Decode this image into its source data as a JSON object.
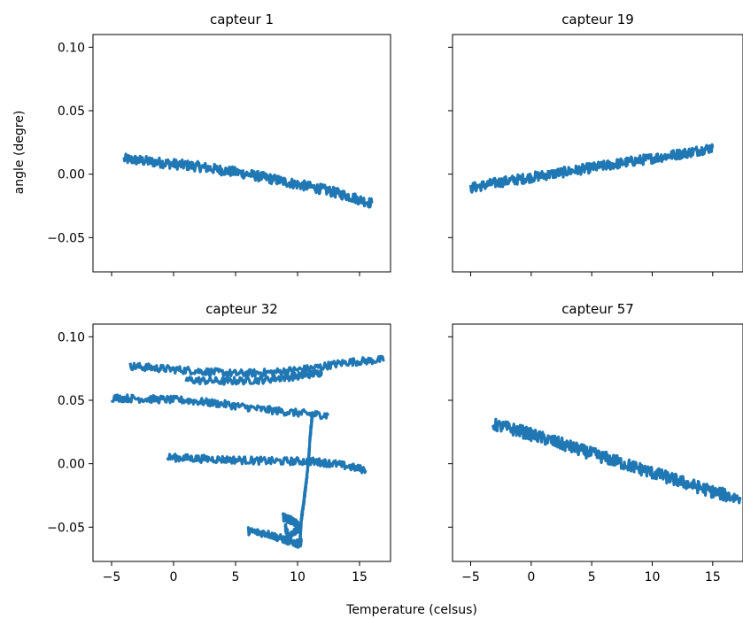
{
  "figure": {
    "xlabel": "Temperature (celsus)",
    "ylabel": "angle (degre)",
    "series_color": "#1f77b4",
    "shared_x_ticks": [
      -5,
      0,
      5,
      10,
      15
    ],
    "shared_y_ticks": [
      -0.05,
      0.0,
      0.05,
      0.1
    ],
    "shared_y_tick_labels": [
      "−0.05",
      "0.00",
      "0.05",
      "0.10"
    ],
    "shared_x_tick_labels": [
      "−5",
      "0",
      "5",
      "10",
      "15"
    ]
  },
  "chart_data": [
    {
      "type": "line",
      "title": "capteur 1",
      "xlim": [
        -6.5,
        17.5
      ],
      "ylim": [
        -0.077,
        0.11
      ],
      "x": [
        -4.0,
        -2.0,
        0.0,
        2.0,
        4.0,
        6.0,
        8.0,
        10.0,
        12.0,
        14.0,
        16.0
      ],
      "y": [
        0.012,
        0.01,
        0.008,
        0.006,
        0.003,
        0.0,
        -0.004,
        -0.008,
        -0.012,
        -0.017,
        -0.023
      ],
      "spread": 0.004
    },
    {
      "type": "line",
      "title": "capteur 19",
      "xlim": [
        -6.5,
        17.5
      ],
      "ylim": [
        -0.077,
        0.11
      ],
      "x": [
        -5.0,
        -3.0,
        -1.0,
        1.0,
        3.0,
        5.0,
        7.0,
        9.0,
        11.0,
        13.0,
        15.0
      ],
      "y": [
        -0.011,
        -0.007,
        -0.004,
        -0.001,
        0.002,
        0.005,
        0.008,
        0.011,
        0.014,
        0.017,
        0.021
      ],
      "spread": 0.004
    },
    {
      "type": "line",
      "title": "capteur 32",
      "xlim": [
        -6.5,
        17.5
      ],
      "ylim": [
        -0.077,
        0.11
      ],
      "segments": [
        {
          "x": [
            -3.5,
            -1.0,
            2.0,
            5.0,
            8.0,
            11.0,
            14.0,
            17.0
          ],
          "y": [
            0.077,
            0.075,
            0.073,
            0.071,
            0.072,
            0.075,
            0.08,
            0.082
          ]
        },
        {
          "x": [
            1.0,
            4.0,
            7.0,
            10.0,
            12.0
          ],
          "y": [
            0.066,
            0.065,
            0.066,
            0.069,
            0.072
          ]
        },
        {
          "x": [
            -5.0,
            -2.0,
            1.0,
            4.0,
            7.0,
            10.0,
            12.5
          ],
          "y": [
            0.052,
            0.051,
            0.05,
            0.047,
            0.043,
            0.04,
            0.038
          ]
        },
        {
          "x": [
            -0.5,
            2.0,
            5.0,
            8.0,
            11.0,
            13.0,
            15.5
          ],
          "y": [
            0.005,
            0.004,
            0.003,
            0.002,
            0.002,
            0.0,
            -0.005
          ]
        },
        {
          "x": [
            11.2,
            11.0,
            10.9,
            10.7,
            10.5,
            10.3,
            10.2
          ],
          "y": [
            0.04,
            0.02,
            0.004,
            -0.015,
            -0.03,
            -0.045,
            -0.06
          ]
        },
        {
          "x": [
            6.0,
            7.5,
            9.0,
            10.0,
            10.3
          ],
          "y": [
            -0.053,
            -0.055,
            -0.06,
            -0.063,
            -0.062
          ]
        },
        {
          "x": [
            8.8,
            9.6,
            10.2,
            9.3,
            9.0
          ],
          "y": [
            -0.042,
            -0.045,
            -0.05,
            -0.058,
            -0.05
          ]
        }
      ],
      "spread": 0.003
    },
    {
      "type": "line",
      "title": "capteur 57",
      "xlim": [
        -6.5,
        17.5
      ],
      "ylim": [
        -0.077,
        0.11
      ],
      "x": [
        -3.2,
        -1.0,
        1.0,
        3.0,
        5.0,
        7.0,
        9.0,
        11.0,
        13.0,
        15.0,
        17.3
      ],
      "y": [
        0.031,
        0.026,
        0.02,
        0.014,
        0.008,
        0.002,
        -0.004,
        -0.01,
        -0.016,
        -0.022,
        -0.028
      ],
      "spread": 0.005
    }
  ]
}
